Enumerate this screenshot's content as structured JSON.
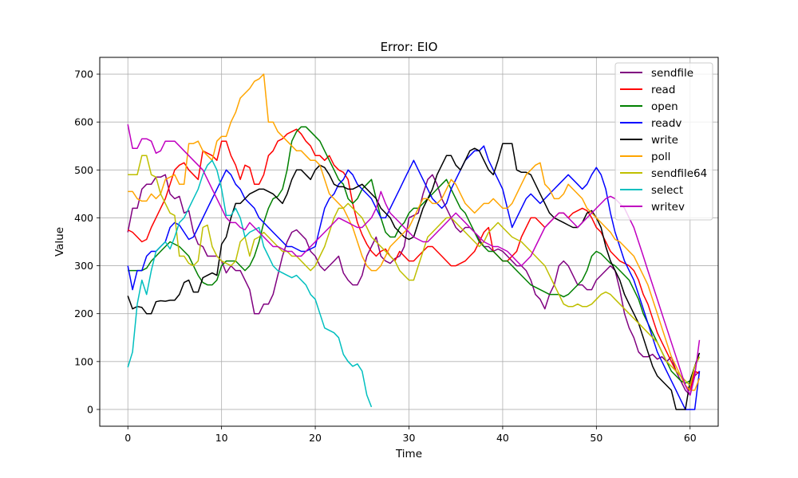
{
  "chart_data": {
    "type": "line",
    "title": "Error: EIO",
    "xlabel": "Time",
    "ylabel": "Value",
    "xlim": [
      -3,
      63
    ],
    "ylim": [
      -35,
      735
    ],
    "xticks": [
      0,
      10,
      20,
      30,
      40,
      50,
      60
    ],
    "yticks": [
      0,
      100,
      200,
      300,
      400,
      500,
      600,
      700
    ],
    "grid": true,
    "legend_position": "top-right",
    "x_step": 0.5,
    "series": [
      {
        "name": "sendfile",
        "color": "#800080",
        "values": [
          370,
          420,
          420,
          460,
          470,
          470,
          485,
          485,
          490,
          450,
          440,
          445,
          410,
          415,
          370,
          345,
          340,
          320,
          320,
          320,
          310,
          285,
          300,
          290,
          290,
          270,
          250,
          200,
          200,
          220,
          220,
          240,
          280,
          320,
          350,
          370,
          375,
          365,
          355,
          330,
          320,
          300,
          290,
          300,
          310,
          320,
          285,
          270,
          260,
          260,
          280,
          320,
          340,
          360,
          320,
          310,
          305,
          315,
          320,
          340,
          400,
          405,
          410,
          450,
          480,
          490,
          470,
          440,
          420,
          400,
          380,
          370,
          380,
          380,
          370,
          355,
          340,
          340,
          330,
          335,
          330,
          320,
          310,
          300,
          300,
          290,
          270,
          240,
          230,
          210,
          240,
          260,
          300,
          310,
          300,
          280,
          260,
          260,
          250,
          250,
          270,
          280,
          290,
          300,
          290,
          250,
          200,
          170,
          150,
          120,
          110,
          110,
          115,
          105,
          110,
          100,
          110,
          80,
          60,
          40,
          30,
          70,
          80
        ]
      },
      {
        "name": "read",
        "color": "#ff0000",
        "values": [
          375,
          370,
          360,
          350,
          355,
          380,
          400,
          420,
          440,
          470,
          500,
          510,
          515,
          500,
          490,
          480,
          540,
          535,
          530,
          520,
          560,
          560,
          530,
          510,
          480,
          510,
          505,
          470,
          470,
          490,
          530,
          540,
          560,
          565,
          575,
          580,
          585,
          575,
          560,
          550,
          530,
          530,
          520,
          530,
          510,
          500,
          495,
          480,
          430,
          390,
          365,
          345,
          330,
          320,
          330,
          335,
          320,
          310,
          330,
          320,
          310,
          310,
          320,
          330,
          340,
          340,
          330,
          320,
          310,
          300,
          300,
          305,
          310,
          320,
          330,
          350,
          370,
          380,
          330,
          320,
          310,
          310,
          320,
          330,
          360,
          380,
          400,
          400,
          390,
          380,
          390,
          400,
          410,
          410,
          400,
          410,
          415,
          420,
          415,
          400,
          380,
          370,
          350,
          330,
          320,
          310,
          305,
          300,
          290,
          270,
          240,
          220,
          190,
          160,
          140,
          120,
          100,
          80,
          70,
          50,
          40,
          80,
          75
        ]
      },
      {
        "name": "open",
        "color": "#008000",
        "values": [
          290,
          290,
          290,
          290,
          295,
          310,
          320,
          330,
          340,
          350,
          345,
          340,
          330,
          320,
          300,
          280,
          265,
          260,
          260,
          270,
          300,
          310,
          310,
          310,
          300,
          290,
          300,
          320,
          350,
          390,
          420,
          440,
          445,
          460,
          500,
          560,
          580,
          590,
          590,
          580,
          570,
          560,
          540,
          520,
          500,
          480,
          470,
          440,
          430,
          440,
          460,
          470,
          480,
          440,
          400,
          370,
          360,
          360,
          380,
          390,
          410,
          420,
          420,
          430,
          440,
          450,
          460,
          470,
          480,
          460,
          440,
          420,
          410,
          390,
          370,
          350,
          340,
          330,
          330,
          320,
          310,
          310,
          300,
          290,
          280,
          270,
          260,
          255,
          250,
          245,
          240,
          240,
          240,
          235,
          240,
          250,
          260,
          270,
          290,
          320,
          330,
          325,
          315,
          305,
          300,
          290,
          280,
          270,
          250,
          230,
          200,
          180,
          160,
          140,
          120,
          100,
          80,
          70,
          60,
          55,
          60,
          90,
          110
        ]
      },
      {
        "name": "readv",
        "color": "#0000ff",
        "values": [
          300,
          250,
          290,
          290,
          320,
          330,
          330,
          340,
          350,
          380,
          390,
          385,
          370,
          355,
          360,
          380,
          400,
          420,
          440,
          460,
          480,
          500,
          490,
          470,
          460,
          440,
          430,
          420,
          400,
          390,
          380,
          370,
          360,
          350,
          340,
          340,
          335,
          330,
          330,
          335,
          340,
          380,
          420,
          440,
          450,
          470,
          480,
          500,
          490,
          470,
          460,
          450,
          440,
          420,
          400,
          400,
          420,
          440,
          460,
          480,
          500,
          520,
          500,
          480,
          460,
          440,
          430,
          420,
          430,
          460,
          480,
          500,
          520,
          530,
          540,
          540,
          550,
          520,
          500,
          480,
          460,
          420,
          380,
          400,
          420,
          440,
          450,
          440,
          430,
          440,
          450,
          460,
          470,
          480,
          490,
          480,
          470,
          460,
          470,
          490,
          505,
          490,
          460,
          410,
          370,
          340,
          310,
          290,
          270,
          240,
          210,
          180,
          150,
          120,
          100,
          80,
          60,
          40,
          20,
          0,
          0,
          0,
          80
        ]
      },
      {
        "name": "write",
        "color": "#000000",
        "values": [
          237,
          210,
          215,
          213,
          200,
          200,
          225,
          227,
          226,
          228,
          228,
          240,
          265,
          270,
          245,
          245,
          275,
          280,
          285,
          280,
          345,
          360,
          400,
          430,
          430,
          440,
          450,
          455,
          460,
          460,
          455,
          450,
          440,
          430,
          450,
          480,
          500,
          500,
          490,
          480,
          500,
          510,
          505,
          490,
          470,
          465,
          465,
          460,
          460,
          465,
          470,
          460,
          450,
          440,
          420,
          410,
          400,
          380,
          370,
          360,
          355,
          360,
          390,
          420,
          440,
          460,
          490,
          510,
          530,
          530,
          510,
          500,
          520,
          540,
          545,
          540,
          520,
          500,
          490,
          520,
          555,
          555,
          555,
          500,
          495,
          495,
          490,
          470,
          450,
          430,
          410,
          400,
          395,
          390,
          385,
          380,
          380,
          390,
          410,
          415,
          400,
          380,
          340,
          310,
          290,
          270,
          240,
          220,
          200,
          180,
          150,
          120,
          90,
          70,
          60,
          50,
          40,
          0,
          0,
          0,
          60,
          90,
          118
        ]
      },
      {
        "name": "poll",
        "color": "#ffa500",
        "values": [
          455,
          455,
          440,
          435,
          435,
          450,
          440,
          450,
          480,
          485,
          490,
          470,
          470,
          555,
          555,
          560,
          540,
          530,
          520,
          560,
          570,
          570,
          600,
          620,
          650,
          660,
          670,
          685,
          690,
          700,
          600,
          600,
          580,
          570,
          560,
          550,
          540,
          540,
          530,
          520,
          520,
          510,
          480,
          450,
          440,
          430,
          420,
          400,
          380,
          350,
          320,
          300,
          290,
          290,
          300,
          320,
          340,
          350,
          360,
          370,
          380,
          400,
          420,
          440,
          440,
          430,
          430,
          440,
          460,
          480,
          470,
          450,
          430,
          420,
          410,
          420,
          430,
          430,
          440,
          430,
          420,
          420,
          430,
          450,
          470,
          490,
          500,
          510,
          515,
          470,
          460,
          440,
          440,
          450,
          470,
          460,
          450,
          440,
          420,
          410,
          400,
          390,
          380,
          370,
          355,
          350,
          340,
          330,
          320,
          300,
          280,
          260,
          230,
          200,
          170,
          140,
          110,
          90,
          70,
          50,
          40,
          40,
          65
        ]
      },
      {
        "name": "sendfile64",
        "color": "#bfbf00",
        "values": [
          490,
          490,
          490,
          530,
          530,
          490,
          485,
          450,
          430,
          410,
          405,
          320,
          320,
          305,
          300,
          310,
          380,
          385,
          340,
          320,
          310,
          305,
          300,
          310,
          350,
          360,
          320,
          355,
          360,
          370,
          360,
          350,
          340,
          330,
          330,
          320,
          320,
          310,
          300,
          290,
          300,
          320,
          340,
          370,
          400,
          420,
          420,
          430,
          420,
          410,
          400,
          380,
          360,
          350,
          340,
          330,
          320,
          310,
          290,
          280,
          270,
          270,
          300,
          330,
          360,
          370,
          380,
          390,
          400,
          400,
          390,
          380,
          370,
          360,
          350,
          340,
          350,
          370,
          380,
          390,
          380,
          370,
          360,
          355,
          350,
          340,
          330,
          320,
          310,
          300,
          280,
          260,
          240,
          220,
          215,
          215,
          220,
          215,
          215,
          220,
          230,
          240,
          245,
          240,
          230,
          220,
          210,
          200,
          190,
          180,
          170,
          160,
          150,
          140,
          120,
          100,
          90,
          80,
          70,
          60,
          50,
          90,
          110
        ]
      },
      {
        "name": "select",
        "color": "#00bfbf",
        "values": [
          88,
          120,
          220,
          270,
          240,
          290,
          330,
          340,
          350,
          335,
          360,
          390,
          400,
          420,
          440,
          460,
          490,
          510,
          520,
          500,
          460,
          405,
          405,
          420,
          400,
          360,
          370,
          375,
          380,
          340,
          320,
          300,
          290,
          285,
          280,
          275,
          280,
          270,
          260,
          240,
          230,
          200,
          170,
          165,
          160,
          150,
          115,
          100,
          90,
          95,
          80,
          30,
          5
        ]
      },
      {
        "name": "writev",
        "color": "#c000c0",
        "values": [
          595,
          545,
          545,
          565,
          565,
          560,
          535,
          540,
          560,
          560,
          560,
          550,
          540,
          530,
          520,
          510,
          500,
          480,
          460,
          440,
          420,
          400,
          390,
          390,
          380,
          375,
          390,
          380,
          370,
          360,
          350,
          340,
          340,
          335,
          330,
          330,
          320,
          320,
          330,
          340,
          350,
          360,
          370,
          380,
          390,
          400,
          395,
          390,
          385,
          380,
          380,
          390,
          400,
          420,
          455,
          430,
          410,
          400,
          390,
          380,
          370,
          360,
          355,
          350,
          350,
          360,
          370,
          380,
          390,
          400,
          410,
          400,
          390,
          380,
          370,
          360,
          350,
          345,
          340,
          340,
          335,
          330,
          320,
          310,
          300,
          310,
          320,
          340,
          360,
          380,
          390,
          400,
          410,
          410,
          400,
          390,
          380,
          390,
          400,
          410,
          420,
          430,
          440,
          445,
          440,
          430,
          420,
          400,
          380,
          350,
          320,
          290,
          260,
          230,
          200,
          170,
          140,
          110,
          80,
          50,
          30,
          70,
          145
        ]
      }
    ]
  }
}
